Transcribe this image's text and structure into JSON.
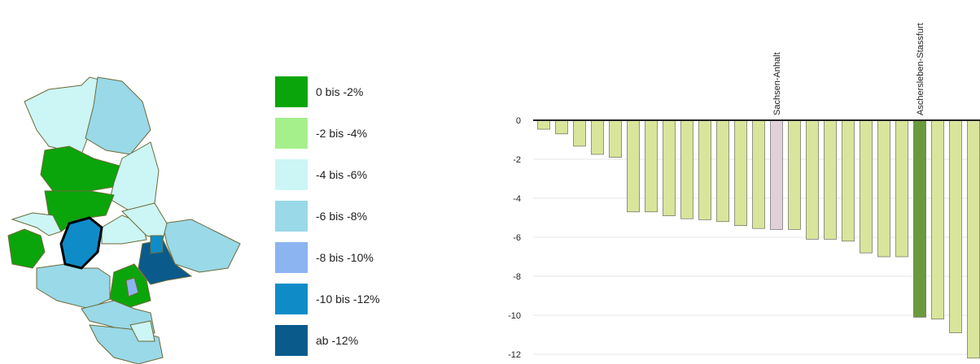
{
  "legend": {
    "items": [
      {
        "label": "0 bis -2%",
        "color": "#0aa50a"
      },
      {
        "label": "-2 bis -4%",
        "color": "#a6f08c"
      },
      {
        "label": "-4 bis -6%",
        "color": "#ccf5f5"
      },
      {
        "label": "-6 bis -8%",
        "color": "#99d9e8"
      },
      {
        "label": "-8 bis -10%",
        "color": "#8cb4f0"
      },
      {
        "label": "-10 bis -12%",
        "color": "#0f8cc8"
      },
      {
        "label": "ab -12%",
        "color": "#0a5a8c"
      }
    ]
  },
  "chart_data": {
    "type": "bar",
    "categories": [
      null,
      null,
      null,
      null,
      null,
      null,
      null,
      null,
      null,
      null,
      null,
      null,
      null,
      "Sachsen-Anhalt",
      null,
      null,
      null,
      null,
      null,
      null,
      null,
      "Aschersleben-Stassfurt",
      null,
      null,
      null
    ],
    "values": [
      -0.46,
      -0.7,
      -1.33,
      -1.75,
      -1.9,
      -4.7,
      -4.7,
      -4.9,
      -5.05,
      -5.1,
      -5.2,
      -5.4,
      -5.55,
      -5.6,
      -5.6,
      -6.1,
      -6.1,
      -6.2,
      -6.8,
      -7,
      -7,
      -10.1,
      -10.2,
      -10.9,
      -12.2
    ],
    "colors": [
      "#d9e59a",
      "#d9e59a",
      "#d9e59a",
      "#d9e59a",
      "#d9e59a",
      "#d9e59a",
      "#d9e59a",
      "#d9e59a",
      "#d9e59a",
      "#d9e59a",
      "#d9e59a",
      "#d9e59a",
      "#d9e59a",
      "#e0d0d8",
      "#d9e59a",
      "#d9e59a",
      "#d9e59a",
      "#d9e59a",
      "#d9e59a",
      "#d9e59a",
      "#d9e59a",
      "#6b9a3c",
      "#d9e59a",
      "#d9e59a",
      "#d9e59a"
    ],
    "ylim": [
      -12,
      0
    ],
    "yticks": [
      0,
      -2,
      -4,
      -6,
      -8,
      -10,
      -12
    ],
    "grid": true
  }
}
